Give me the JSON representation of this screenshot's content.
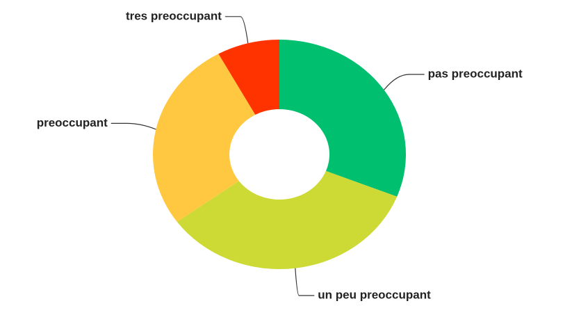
{
  "chart_data": {
    "type": "donut",
    "categories": [
      "pas preoccupant",
      "un peu preoccupant",
      "preoccupant",
      "tres preoccupant"
    ],
    "values": [
      31,
      34,
      27,
      8
    ],
    "colors": [
      "#00c070",
      "#cdd935",
      "#ffc840",
      "#ff3300"
    ]
  }
}
